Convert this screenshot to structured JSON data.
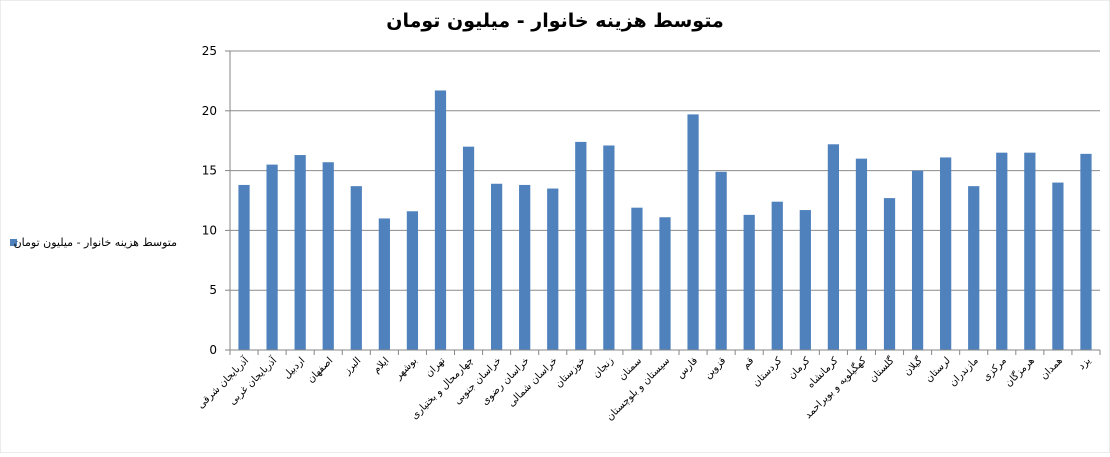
{
  "chart_data": {
    "type": "bar",
    "title": "متوسط هزینه خانوار - میلیون تومان",
    "xlabel": "",
    "ylabel": "",
    "ylim": [
      0,
      25
    ],
    "y_ticks": [
      0,
      5,
      10,
      15,
      20,
      25
    ],
    "grid": true,
    "legend_position": "left",
    "colors": {
      "bar": "#4f81bd",
      "grid": "#8c8c8c",
      "axis": "#868686"
    },
    "categories": [
      "آذربایجان شرقی",
      "آذربایجان غربی",
      "اردبیل",
      "اصفهان",
      "البرز",
      "ایلام",
      "بوشهر",
      "تهران",
      "چهارمحال و بختیاری",
      "خراسان جنوبی",
      "خراسان رضوی",
      "خراسان شمالی",
      "خوزستان",
      "زنجان",
      "سمنان",
      "سیستان و بلوچستان",
      "فارس",
      "قزوین",
      "قم",
      "کردستان",
      "کرمان",
      "کرمانشاه",
      "کهگیلویه و بویراحمد",
      "گلستان",
      "گیلان",
      "لرستان",
      "مازندران",
      "مرکزی",
      "هرمزگان",
      "همدان",
      "یزد"
    ],
    "series": [
      {
        "name": "متوسط هزینه خانوار - میلیون تومان",
        "values": [
          13.8,
          15.5,
          16.3,
          15.7,
          13.7,
          11.0,
          11.6,
          21.7,
          17.0,
          13.9,
          13.8,
          13.5,
          17.4,
          17.1,
          11.9,
          11.1,
          19.7,
          14.9,
          11.3,
          12.4,
          11.7,
          17.2,
          16.0,
          12.7,
          15.0,
          16.1,
          13.7,
          16.5,
          16.5,
          14.0,
          16.4
        ]
      }
    ]
  }
}
